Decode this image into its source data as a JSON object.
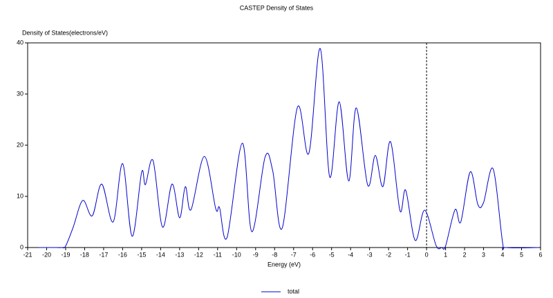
{
  "chart_data": {
    "type": "line",
    "title": "CASTEP Density of States",
    "ylabel": "Density of States(electrons/eV)",
    "xlabel": "Energy (eV)",
    "x": [
      -20.4,
      -19.5,
      -19.2,
      -19.0,
      -18.6,
      -18.1,
      -17.6,
      -17.1,
      -16.5,
      -16.0,
      -15.5,
      -15.0,
      -14.8,
      -14.4,
      -13.9,
      -13.4,
      -13.0,
      -12.7,
      -12.4,
      -11.7,
      -11.1,
      -10.9,
      -10.5,
      -9.7,
      -9.2,
      -8.5,
      -8.1,
      -7.6,
      -6.8,
      -6.2,
      -5.6,
      -5.1,
      -4.6,
      -4.1,
      -3.7,
      -3.1,
      -2.7,
      -2.3,
      -1.9,
      -1.4,
      -1.1,
      -0.6,
      -0.1,
      0.5,
      0.8,
      1.0,
      1.5,
      1.8,
      2.3,
      2.7,
      3.0,
      3.5,
      4.0,
      4.2,
      5.9
    ],
    "series": [
      {
        "name": "total",
        "color": "#0000cc",
        "values": [
          0,
          0,
          0,
          0.3,
          4,
          9.2,
          6.2,
          12.4,
          5,
          16.4,
          2.2,
          14.7,
          12.3,
          17,
          4,
          12.4,
          5.8,
          11.9,
          7.4,
          17.8,
          7.6,
          7.8,
          2,
          20.4,
          3.1,
          17.7,
          15,
          3.8,
          27.4,
          18.4,
          38.9,
          13.8,
          28.5,
          13,
          27.3,
          12.2,
          18,
          11.9,
          20.7,
          7.2,
          11.2,
          1.4,
          7.3,
          0.4,
          0,
          0.3,
          7.4,
          5,
          14.8,
          8.4,
          8.8,
          15.4,
          1,
          0,
          0
        ]
      }
    ],
    "xlim": [
      -21,
      6
    ],
    "xticks": [
      -21,
      -20,
      -19,
      -18,
      -17,
      -16,
      -15,
      -14,
      -13,
      -12,
      -11,
      -10,
      -9,
      -8,
      -7,
      -6,
      -5,
      -4,
      -3,
      -2,
      -1,
      0,
      1,
      2,
      3,
      4,
      5,
      6
    ],
    "ylim": [
      0,
      40
    ],
    "yticks": [
      0,
      10,
      20,
      30,
      40
    ],
    "vline": 0,
    "legend": "bottom"
  }
}
